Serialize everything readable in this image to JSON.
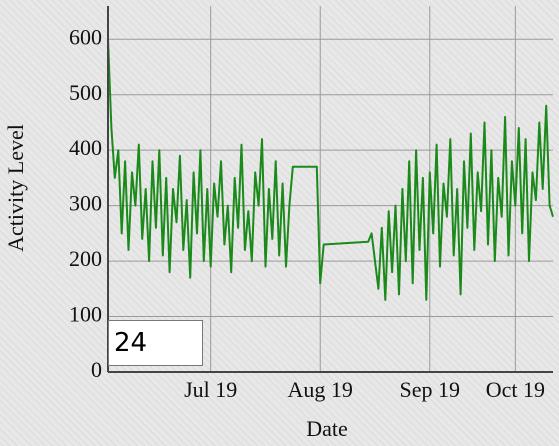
{
  "chart_data": {
    "type": "line",
    "y_label": "Activity Level",
    "x_label": "Date",
    "x": [
      0,
      1,
      2,
      3,
      4,
      5,
      6,
      7,
      8,
      9,
      10,
      11,
      12,
      13,
      14,
      15,
      16,
      17,
      18,
      19,
      20,
      21,
      22,
      23,
      24,
      25,
      26,
      27,
      28,
      29,
      30,
      31,
      32,
      33,
      34,
      35,
      36,
      37,
      38,
      39,
      40,
      41,
      42,
      43,
      44,
      45,
      46,
      47,
      48,
      49,
      50,
      51,
      52,
      53,
      54,
      61,
      62,
      63,
      76,
      77,
      78,
      79,
      80,
      81,
      82,
      83,
      84,
      85,
      86,
      87,
      88,
      89,
      90,
      91,
      92,
      93,
      94,
      95,
      96,
      97,
      98,
      99,
      100,
      101,
      102,
      103,
      104,
      105,
      106,
      107,
      108,
      109,
      110,
      111,
      112,
      113,
      114,
      115,
      116,
      117,
      118,
      119,
      120,
      121,
      122,
      123,
      124,
      125,
      126,
      127,
      128,
      129,
      130
    ],
    "series": [
      {
        "name": null,
        "color": "#1b8a1b",
        "values": [
          600,
          440,
          350,
          400,
          250,
          380,
          220,
          360,
          300,
          410,
          240,
          330,
          200,
          380,
          260,
          400,
          210,
          350,
          180,
          330,
          270,
          390,
          220,
          310,
          170,
          360,
          250,
          400,
          200,
          330,
          190,
          340,
          280,
          380,
          230,
          300,
          180,
          350,
          260,
          410,
          220,
          290,
          200,
          360,
          300,
          420,
          190,
          330,
          240,
          380,
          210,
          340,
          190,
          300,
          370,
          370,
          160,
          230,
          235,
          250,
          200,
          150,
          260,
          130,
          290,
          180,
          300,
          140,
          330,
          200,
          380,
          160,
          400,
          220,
          350,
          130,
          360,
          250,
          410,
          190,
          340,
          280,
          420,
          210,
          330,
          140,
          380,
          260,
          430,
          220,
          360,
          290,
          450,
          230,
          400,
          200,
          350,
          280,
          460,
          210,
          380,
          300,
          440,
          250,
          420,
          200,
          360,
          310,
          450,
          330,
          480,
          300,
          280
        ]
      }
    ],
    "xlim": [
      0,
      130
    ],
    "xticks": [
      {
        "value": 30,
        "label": "Jul 19"
      },
      {
        "value": 62,
        "label": "Aug 19"
      },
      {
        "value": 94,
        "label": "Sep 19"
      },
      {
        "value": 119,
        "label": "Oct 19"
      }
    ],
    "ylim": [
      0,
      660
    ],
    "yticks": [
      0,
      100,
      200,
      300,
      400,
      500,
      600
    ],
    "grid": true
  },
  "roll_period_input": "24"
}
